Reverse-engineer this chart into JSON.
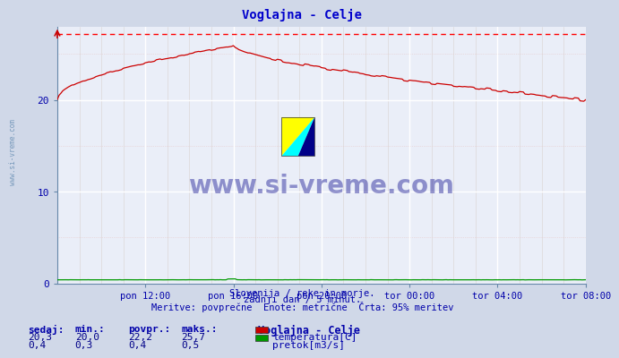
{
  "title": "Voglajna - Celje",
  "title_color": "#0000cc",
  "bg_color": "#d0d8e8",
  "plot_bg_color": "#eaeef8",
  "grid_major_color": "#ffffff",
  "grid_minor_color": "#e8c8c8",
  "grid_minor_v_color": "#ddd8d8",
  "x_tick_labels": [
    "pon 12:00",
    "pon 16:00",
    "pon 20:00",
    "tor 00:00",
    "tor 04:00",
    "tor 08:00"
  ],
  "x_tick_positions": [
    48,
    96,
    144,
    192,
    240,
    288
  ],
  "x_total_points": 289,
  "x_min": 0,
  "x_max": 288,
  "y_ticks": [
    0,
    10,
    20
  ],
  "y_max": 28,
  "y_min": 0,
  "dashed_line_value": 27.2,
  "dashed_line_color": "#ff0000",
  "temp_line_color": "#cc0000",
  "flow_line_color": "#009900",
  "footer_line1": "Slovenija / reke in morje.",
  "footer_line2": "zadnji dan / 5 minut.",
  "footer_line3": "Meritve: povprečne  Enote: metrične  Črta: 95% meritev",
  "footer_color": "#0000aa",
  "watermark_text": "www.si-vreme.com",
  "watermark_color": "#000088",
  "sidebar_text": "www.si-vreme.com",
  "sidebar_color": "#7799bb",
  "legend_station": "Voglajna - Celje",
  "legend_items": [
    {
      "label": "temperatura[C]",
      "color": "#cc0000"
    },
    {
      "label": "pretok[m3/s]",
      "color": "#009900"
    }
  ],
  "stats_labels": [
    "sedaj:",
    "min.:",
    "povpr.:",
    "maks.:"
  ],
  "stats_temp": [
    "20,3",
    "20,0",
    "22,2",
    "25,7"
  ],
  "stats_flow": [
    "0,4",
    "0,3",
    "0,4",
    "0,5"
  ],
  "stats_label_color": "#0000aa",
  "stats_value_color": "#000088",
  "icon_yellow": "#ffff00",
  "icon_cyan": "#00ffff",
  "icon_blue": "#000088"
}
